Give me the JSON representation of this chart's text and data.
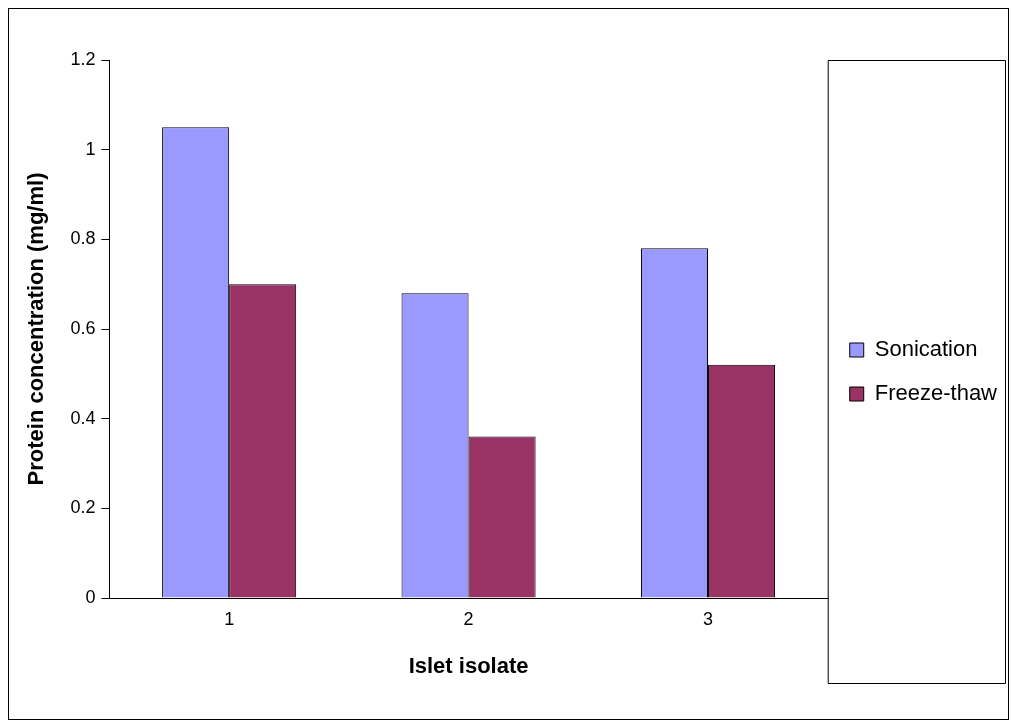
{
  "chart_data": {
    "type": "bar",
    "xlabel": "Islet isolate",
    "ylabel": "Protein concentration (mg/ml)",
    "categories": [
      "1",
      "2",
      "3"
    ],
    "series": [
      {
        "name": "Sonication",
        "color": "#9999ff",
        "values": [
          1.05,
          0.68,
          0.78
        ]
      },
      {
        "name": "Freeze-thaw",
        "color": "#993366",
        "values": [
          0.7,
          0.36,
          0.52
        ]
      }
    ],
    "ylim": [
      0,
      1.2
    ],
    "yticks": [
      0,
      0.2,
      0.4,
      0.6,
      0.8,
      1,
      1.2
    ],
    "grid": false,
    "legend": "right"
  }
}
